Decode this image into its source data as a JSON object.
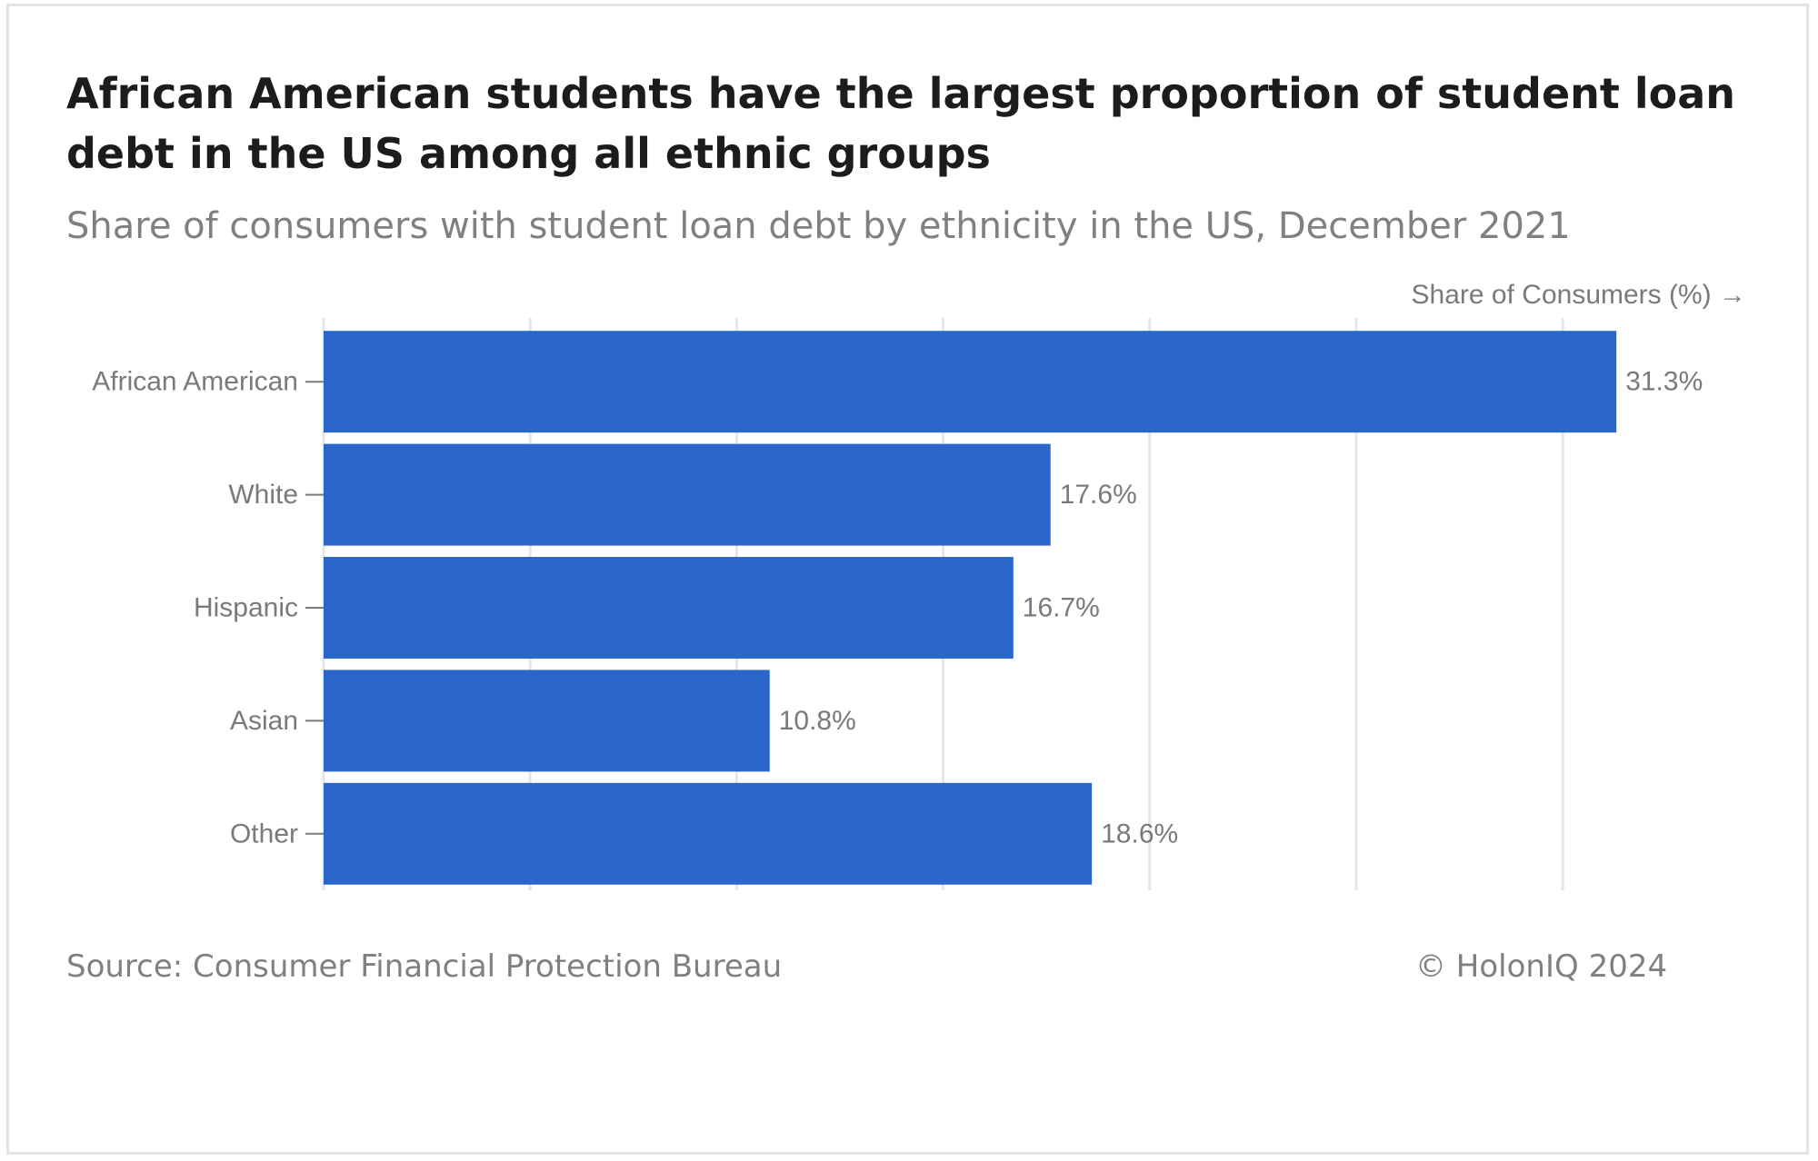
{
  "header": {
    "title": "African American students have the largest proportion of student loan debt in the US among all ethnic groups",
    "subtitle": "Share of consumers with student loan debt by ethnicity in the US, December 2021"
  },
  "footer": {
    "source": "Source: Consumer Financial Protection Bureau",
    "credit": "© HolonIQ 2024"
  },
  "colors": {
    "bar": "#2a66cc",
    "grid": "#e6e6e6",
    "tick": "#7a7a7a"
  },
  "chart_data": {
    "type": "bar",
    "orientation": "horizontal",
    "title": "African American students have the largest proportion of student loan debt in the US among all ethnic groups",
    "subtitle": "Share of consumers with student loan debt by ethnicity in the US, December 2021",
    "xlabel": "Share of Consumers (%) →",
    "ylabel": "",
    "categories": [
      "African American",
      "White",
      "Hispanic",
      "Asian",
      "Other"
    ],
    "values": [
      31.3,
      17.6,
      16.7,
      10.8,
      18.6
    ],
    "value_labels": [
      "31.3%",
      "17.6%",
      "16.7%",
      "10.8%",
      "18.6%"
    ],
    "xlim": [
      0,
      32
    ],
    "x_grid_step": 5,
    "grid": true,
    "legend": "none"
  }
}
